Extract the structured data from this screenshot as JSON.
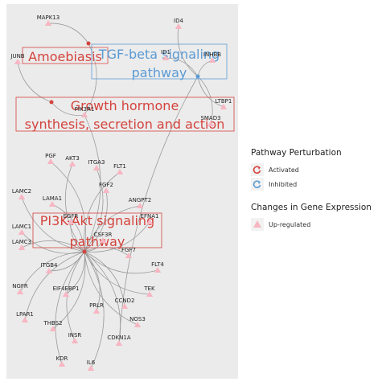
{
  "pathways": [
    {
      "id": "amoebiasis",
      "name": "Amoebiasis",
      "status": "activated"
    },
    {
      "id": "tgfb",
      "name": "TGF-beta signaling pathway",
      "status": "inhibited"
    },
    {
      "id": "gh",
      "name": "Growth hormone synthesis, secretion and action",
      "status": "activated"
    },
    {
      "id": "pi3k",
      "name": "PI3K-Akt signaling pathway",
      "status": "activated"
    }
  ],
  "genes": [
    {
      "id": "MAPK13",
      "links": [
        "amoebiasis"
      ]
    },
    {
      "id": "JUNB",
      "links": [
        "gh"
      ]
    },
    {
      "id": "PIK3R1",
      "links": [
        "gh",
        "amoebiasis",
        "pi3k"
      ]
    },
    {
      "id": "ID4",
      "links": [
        "tgfb"
      ]
    },
    {
      "id": "ID1",
      "links": [
        "tgfb"
      ]
    },
    {
      "id": "INHBB",
      "links": [
        "tgfb"
      ]
    },
    {
      "id": "LTBP1",
      "links": [
        "tgfb"
      ]
    },
    {
      "id": "SMAD3",
      "links": [
        "tgfb"
      ]
    },
    {
      "id": "PGF",
      "links": [
        "pi3k"
      ]
    },
    {
      "id": "AKT3",
      "links": [
        "pi3k"
      ]
    },
    {
      "id": "ITGA3",
      "links": [
        "pi3k"
      ]
    },
    {
      "id": "FLT1",
      "links": [
        "pi3k"
      ]
    },
    {
      "id": "FGF2",
      "links": [
        "pi3k"
      ]
    },
    {
      "id": "ANGPT2",
      "links": [
        "pi3k"
      ]
    },
    {
      "id": "EFNA1",
      "links": [
        "pi3k"
      ]
    },
    {
      "id": "LAMC2",
      "links": [
        "pi3k"
      ]
    },
    {
      "id": "LAMA1",
      "links": [
        "pi3k"
      ]
    },
    {
      "id": "EGFR",
      "links": [
        "pi3k"
      ]
    },
    {
      "id": "CSF3R",
      "links": [
        "pi3k"
      ]
    },
    {
      "id": "LAMC1",
      "links": [
        "pi3k"
      ]
    },
    {
      "id": "LAMC3",
      "links": [
        "pi3k"
      ]
    },
    {
      "id": "FGF7",
      "links": [
        "pi3k"
      ]
    },
    {
      "id": "FLT4",
      "links": [
        "pi3k"
      ]
    },
    {
      "id": "ITGB4",
      "links": [
        "pi3k"
      ]
    },
    {
      "id": "NGFR",
      "links": [
        "pi3k"
      ]
    },
    {
      "id": "EIF4EBP1",
      "links": [
        "pi3k"
      ]
    },
    {
      "id": "TEK",
      "links": [
        "pi3k"
      ]
    },
    {
      "id": "CCND2",
      "links": [
        "pi3k"
      ]
    },
    {
      "id": "LPAR1",
      "links": [
        "pi3k"
      ]
    },
    {
      "id": "PRLR",
      "links": [
        "pi3k"
      ]
    },
    {
      "id": "NOS3",
      "links": [
        "pi3k"
      ]
    },
    {
      "id": "THBS2",
      "links": [
        "pi3k"
      ]
    },
    {
      "id": "INSR",
      "links": [
        "pi3k"
      ]
    },
    {
      "id": "CDKN1A",
      "links": [
        "pi3k",
        "tgfb"
      ]
    },
    {
      "id": "KDR",
      "links": [
        "pi3k"
      ]
    },
    {
      "id": "IL6",
      "links": [
        "pi3k"
      ]
    }
  ],
  "colors": {
    "panel_bg": "#ebebeb",
    "activated": "#d4433d",
    "inhibited": "#5b9bd5",
    "upregulated": "#f7b6c2",
    "edge": "#9a9a9a"
  },
  "legend": {
    "perturbation_title": "Pathway Perturbation",
    "activated_label": "Activated",
    "inhibited_label": "Inhibited",
    "expression_title": "Changes in Gene Expression",
    "upregulated_label": "Up-regulated",
    "activated_icon": "activated-arrow-icon",
    "inhibited_icon": "inhibited-arrow-icon",
    "upregulated_icon": "triangle-icon"
  }
}
